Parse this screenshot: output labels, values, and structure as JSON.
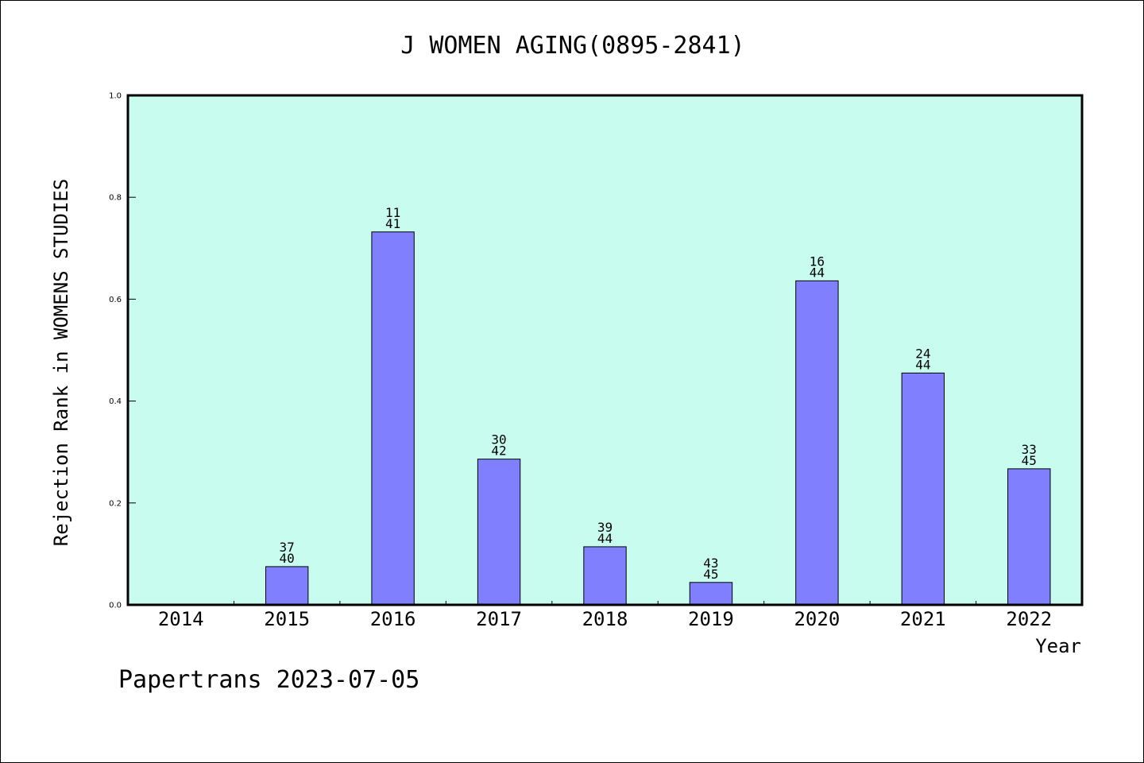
{
  "chart_data": {
    "type": "bar",
    "title": "J WOMEN AGING(0895-2841)",
    "xlabel": "Year",
    "ylabel": "Rejection Rank in WOMENS STUDIES",
    "footer": "Papertrans 2023-07-05",
    "categories": [
      "2014",
      "2015",
      "2016",
      "2017",
      "2018",
      "2019",
      "2020",
      "2021",
      "2022"
    ],
    "values": [
      null,
      0.075,
      0.732,
      0.286,
      0.114,
      0.044,
      0.636,
      0.455,
      0.267
    ],
    "bar_labels": [
      null,
      {
        "rank": "37",
        "total": "40"
      },
      {
        "rank": "11",
        "total": "41"
      },
      {
        "rank": "30",
        "total": "42"
      },
      {
        "rank": "39",
        "total": "44"
      },
      {
        "rank": "43",
        "total": "45"
      },
      {
        "rank": "16",
        "total": "44"
      },
      {
        "rank": "24",
        "total": "44"
      },
      {
        "rank": "33",
        "total": "45"
      }
    ],
    "ylim": [
      0,
      1.0
    ],
    "yticks": [
      "0.0",
      "0.2",
      "0.4",
      "0.6",
      "0.8",
      "1.0"
    ],
    "colors": {
      "plot_background": "#c8fcee",
      "bar_fill": "#8080ff",
      "bar_stroke": "#000000"
    },
    "grid": false,
    "legend": "none"
  }
}
